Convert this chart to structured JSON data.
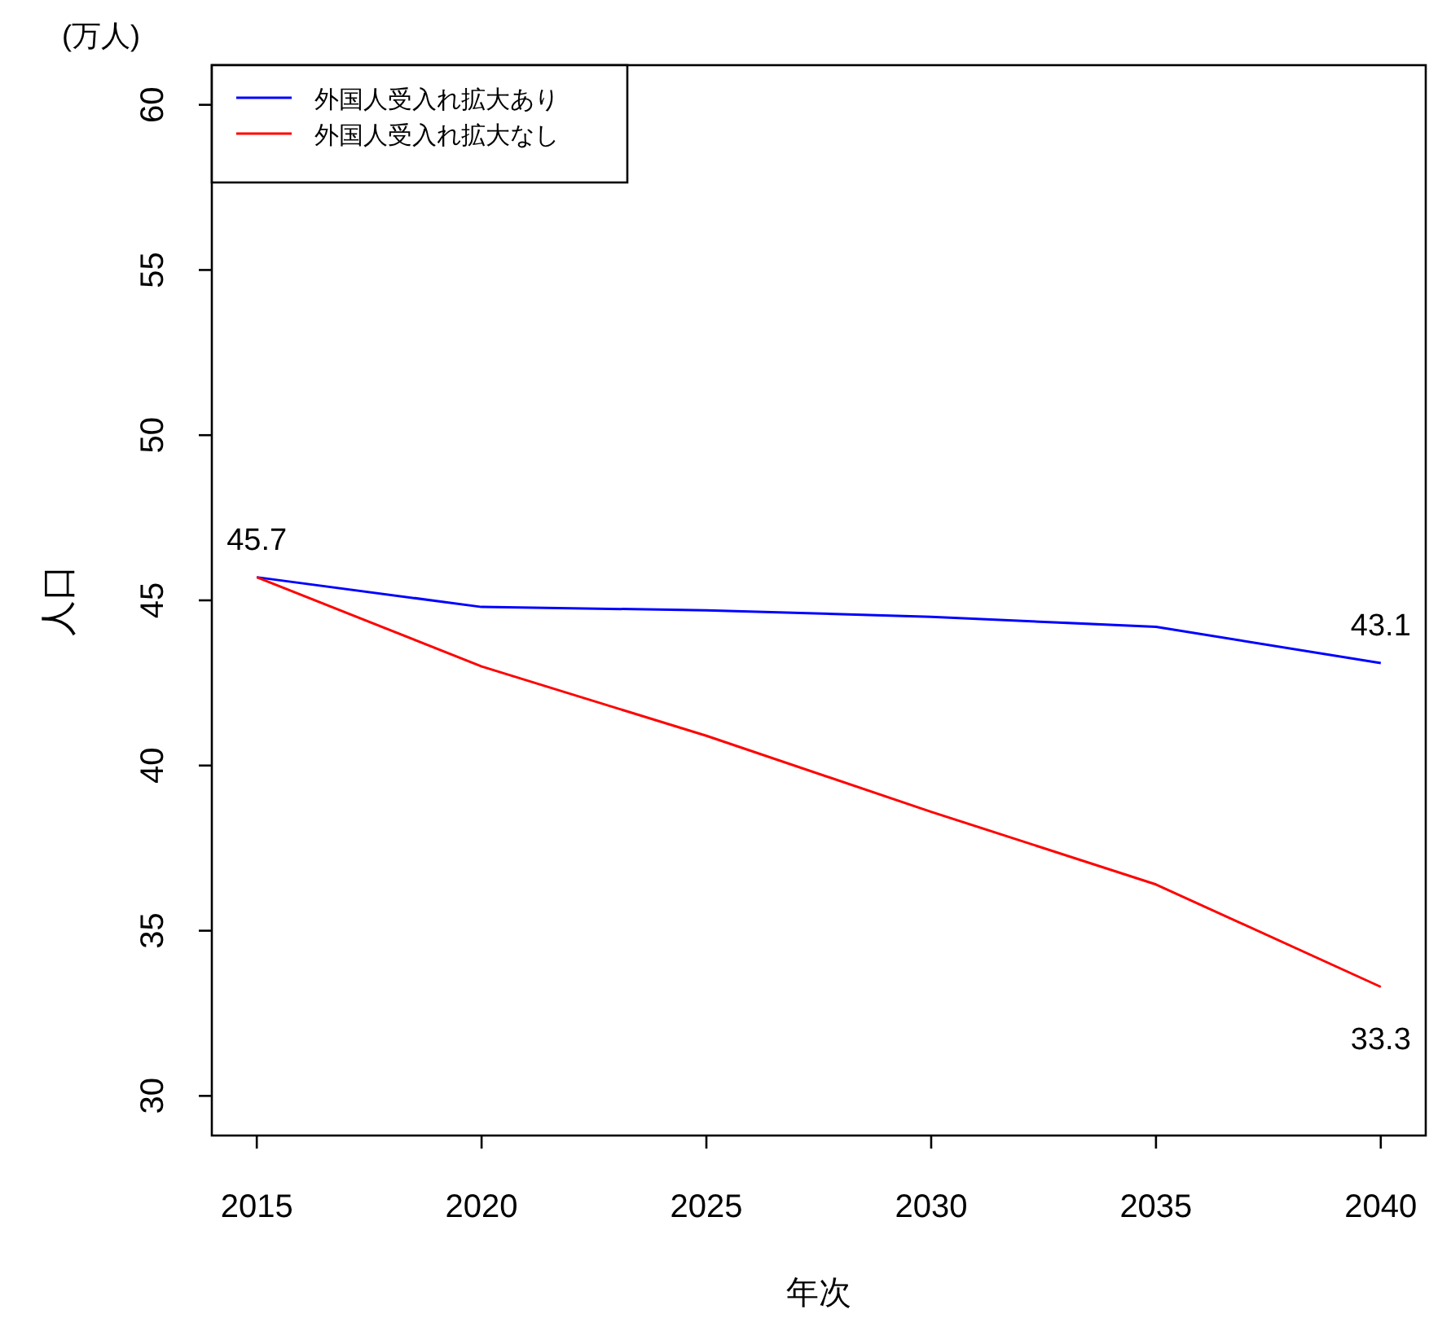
{
  "chart_data": {
    "type": "line",
    "xlabel": "年次",
    "ylabel": "人口",
    "x": [
      2015,
      2020,
      2025,
      2030,
      2035,
      2040
    ],
    "series": [
      {
        "name": "外国人受入れ拡大あり",
        "color": "#0000ff",
        "values": [
          45.7,
          44.8,
          44.7,
          44.5,
          44.2,
          43.1
        ],
        "value_labels": [
          "45.7",
          null,
          null,
          null,
          null,
          "43.1"
        ]
      },
      {
        "name": "外国人受入れ拡大なし",
        "color": "#ff0000",
        "values": [
          45.7,
          43.0,
          40.9,
          38.6,
          36.4,
          33.3
        ],
        "value_labels": [
          null,
          null,
          null,
          null,
          null,
          "33.3"
        ]
      }
    ],
    "xlim": [
      2014,
      2041
    ],
    "ylim": [
      28.8,
      61.2
    ],
    "xticks": [
      2015,
      2020,
      2025,
      2030,
      2035,
      2040
    ],
    "yticks": [
      30,
      35,
      40,
      45,
      50,
      55,
      60
    ],
    "annotations": [
      "(万人)"
    ],
    "legend": "top left",
    "grid": false,
    "marker": "none",
    "line_style": "solid"
  }
}
